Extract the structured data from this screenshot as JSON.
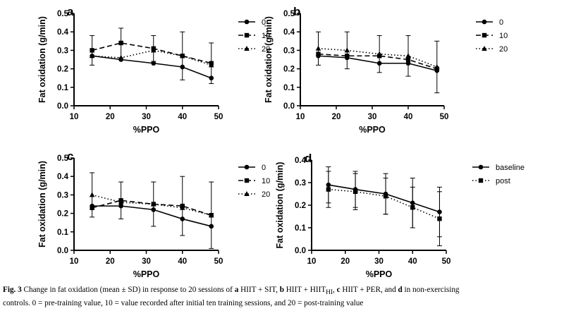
{
  "chart_data": [
    {
      "type": "line",
      "panel_label": "a",
      "x": [
        15,
        23,
        32,
        40,
        48
      ],
      "xlabel": "%PPO",
      "ylabel": "Fat oxidation (g/min)",
      "xlim": [
        10,
        50
      ],
      "ylim": [
        0.0,
        0.5
      ],
      "xticks": [
        "10",
        "20",
        "30",
        "40",
        "50"
      ],
      "yticks": [
        "0.0",
        "0.1",
        "0.2",
        "0.3",
        "0.4",
        "0.5"
      ],
      "legend_position": "right",
      "series": [
        {
          "name": "0",
          "marker": "circle",
          "dash": "solid",
          "values": [
            0.27,
            0.25,
            0.23,
            0.21,
            0.15
          ],
          "errors": [
            0.0,
            0.0,
            0.0,
            0.0,
            0.0
          ]
        },
        {
          "name": "10",
          "marker": "square",
          "dash": "dashed",
          "values": [
            0.3,
            0.34,
            0.31,
            0.27,
            0.23
          ],
          "errors": [
            0.08,
            0.08,
            0.07,
            0.13,
            0.11
          ]
        },
        {
          "name": "20",
          "marker": "triangle",
          "dash": "dotted",
          "values": [
            0.27,
            0.26,
            0.3,
            0.27,
            0.22
          ],
          "errors": [
            0.0,
            0.0,
            0.0,
            0.0,
            0.0
          ]
        }
      ]
    },
    {
      "type": "line",
      "panel_label": "b",
      "x": [
        15,
        23,
        32,
        40,
        48
      ],
      "xlabel": "%PPO",
      "ylabel": "Fat oxidation (g/min)",
      "xlim": [
        10,
        50
      ],
      "ylim": [
        0.0,
        0.5
      ],
      "xticks": [
        "10",
        "20",
        "30",
        "40",
        "50"
      ],
      "yticks": [
        "0.0",
        "0.1",
        "0.2",
        "0.3",
        "0.4",
        "0.5"
      ],
      "legend_position": "right",
      "series": [
        {
          "name": "0",
          "marker": "circle",
          "dash": "solid",
          "values": [
            0.27,
            0.26,
            0.23,
            0.23,
            0.19
          ],
          "errors": [
            0.0,
            0.0,
            0.0,
            0.0,
            0.0
          ]
        },
        {
          "name": "10",
          "marker": "square",
          "dash": "dashed",
          "values": [
            0.28,
            0.27,
            0.27,
            0.25,
            0.2
          ],
          "errors": [
            0.0,
            0.0,
            0.0,
            0.0,
            0.0
          ]
        },
        {
          "name": "20",
          "marker": "triangle",
          "dash": "dotted",
          "values": [
            0.31,
            0.3,
            0.28,
            0.27,
            0.21
          ],
          "errors": [
            0.09,
            0.1,
            0.1,
            0.11,
            0.14
          ]
        }
      ]
    },
    {
      "type": "line",
      "panel_label": "c",
      "x": [
        15,
        23,
        32,
        40,
        48
      ],
      "xlabel": "%PPO",
      "ylabel": "Fat oxidation (g/min)",
      "xlim": [
        10,
        50
      ],
      "ylim": [
        0.0,
        0.5
      ],
      "xticks": [
        "10",
        "20",
        "30",
        "40",
        "50"
      ],
      "yticks": [
        "0.0",
        "0.1",
        "0.2",
        "0.3",
        "0.4",
        "0.5"
      ],
      "legend_position": "right",
      "series": [
        {
          "name": "0",
          "marker": "circle",
          "dash": "solid",
          "values": [
            0.24,
            0.24,
            0.22,
            0.17,
            0.13
          ],
          "errors": [
            0.0,
            0.0,
            0.0,
            0.0,
            0.0
          ]
        },
        {
          "name": "10",
          "marker": "square",
          "dash": "dashed",
          "values": [
            0.23,
            0.27,
            0.25,
            0.24,
            0.19
          ],
          "errors": [
            0.0,
            0.1,
            0.12,
            0.16,
            0.18
          ]
        },
        {
          "name": "20",
          "marker": "triangle",
          "dash": "dotted",
          "values": [
            0.3,
            0.26,
            0.25,
            0.23,
            0.19
          ],
          "errors": [
            0.12,
            0.0,
            0.0,
            0.0,
            0.0
          ]
        }
      ]
    },
    {
      "type": "line",
      "panel_label": "d",
      "x": [
        15,
        23,
        32,
        40,
        48
      ],
      "xlabel": "%PPO",
      "ylabel": "Fat oxidation (g/min)",
      "xlim": [
        10,
        50
      ],
      "ylim": [
        0.0,
        0.4
      ],
      "xticks": [
        "10",
        "20",
        "30",
        "40",
        "50"
      ],
      "yticks": [
        "0.0",
        "0.1",
        "0.2",
        "0.3",
        "0.4"
      ],
      "legend_position": "right",
      "series": [
        {
          "name": "baseline",
          "marker": "circle",
          "dash": "solid",
          "values": [
            0.29,
            0.27,
            0.25,
            0.21,
            0.17
          ],
          "errors": [
            0.08,
            0.08,
            0.09,
            0.11,
            0.11
          ]
        },
        {
          "name": "post",
          "marker": "square",
          "dash": "dotted",
          "values": [
            0.27,
            0.26,
            0.24,
            0.19,
            0.14
          ],
          "errors": [
            0.08,
            0.08,
            0.08,
            0.09,
            0.12
          ]
        }
      ]
    }
  ],
  "caption": {
    "fig_label": "Fig. 3",
    "pre": "Change in fat oxidation (mean ± SD) in response to 20 sessions of",
    "a_label": "a",
    "a_text": "HIIT + SIT,",
    "b_label": "b",
    "b_text": "HIIT + HIIT",
    "b_sub": "HI",
    "b_after": ",",
    "c_label": "c",
    "c_text": "HIIT + PER, and",
    "d_label": "d",
    "d_text": "in non-exercising",
    "line2": "controls. 0 = pre-training value, 10 = value recorded after initial ten training sessions, and 20 = post-training value"
  }
}
